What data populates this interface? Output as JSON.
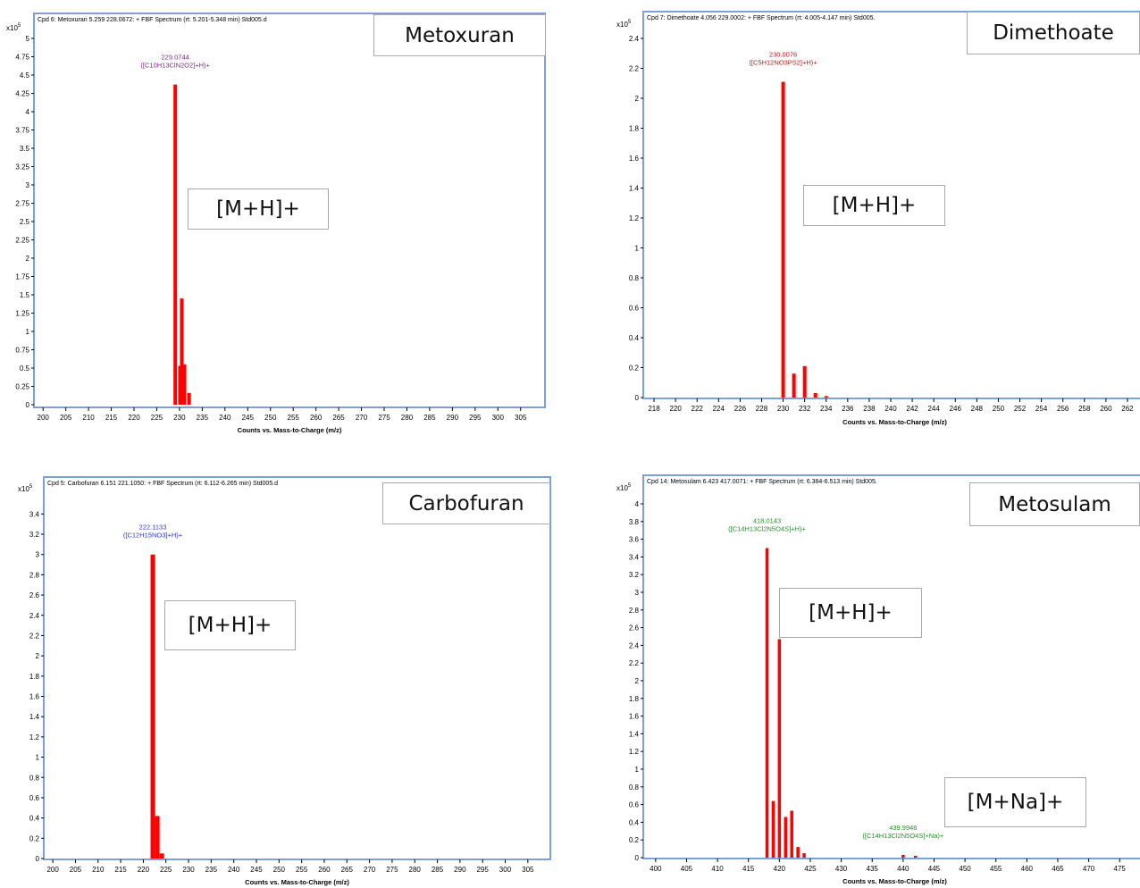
{
  "chart_data": [
    {
      "type": "bar",
      "compound_label": "Metoxuran",
      "header": "Cpd 6: Metoxuran 5.259 228.0672: + FBF Spectrum (rt: 5.201-5.348 min) Std005.d",
      "multiplier": "x10",
      "multiplier_exp": "5",
      "xlabel": "Counts vs. Mass-to-Charge (m/z)",
      "xlim": [
        198,
        308
      ],
      "ylim": [
        0,
        5
      ],
      "x_ticks": [
        200,
        205,
        210,
        215,
        220,
        225,
        230,
        235,
        240,
        245,
        250,
        255,
        260,
        265,
        270,
        275,
        280,
        285,
        290,
        295,
        300,
        305
      ],
      "y_ticks": [
        "0",
        "0.25",
        "0.5",
        "0.75",
        "1",
        "1.25",
        "1.5",
        "1.75",
        "2",
        "2.25",
        "2.5",
        "2.75",
        "3",
        "3.25",
        "3.5",
        "3.75",
        "4",
        "4.25",
        "4.5",
        "4.75",
        "5"
      ],
      "y_tick_values": [
        0,
        0.25,
        0.5,
        0.75,
        1,
        1.25,
        1.5,
        1.75,
        2,
        2.25,
        2.5,
        2.75,
        3,
        3.25,
        3.5,
        3.75,
        4,
        4.25,
        4.5,
        4.75,
        5
      ],
      "peaks": [
        {
          "x": 229.07,
          "y": 4.37
        },
        {
          "x": 230.1,
          "y": 0.53
        },
        {
          "x": 230.5,
          "y": 1.45
        },
        {
          "x": 231.1,
          "y": 0.55
        },
        {
          "x": 232.1,
          "y": 0.16
        }
      ],
      "peak_labels": [
        {
          "x": 229.07,
          "y": 4.37,
          "lines": [
            "229.0744",
            "([C10H13ClN2O2]+H)+"
          ],
          "color": "#7a2a8a"
        }
      ],
      "ion_boxes": [
        {
          "label": "[M+H]+"
        }
      ],
      "bar_color": "#ff0000",
      "frame_color": "#7f9fd8"
    },
    {
      "type": "bar",
      "compound_label": "Dimethoate",
      "header": "Cpd 7: Dimethoate 4.056 229.0002: + FBF Spectrum (rt: 4.005-4.147 min) Std005.",
      "multiplier": "x10",
      "multiplier_exp": "5",
      "xlabel": "Counts vs. Mass-to-Charge (m/z)",
      "xlim": [
        217,
        263
      ],
      "ylim": [
        0,
        2.4
      ],
      "x_ticks": [
        218,
        220,
        222,
        224,
        226,
        228,
        230,
        232,
        234,
        236,
        238,
        240,
        242,
        244,
        246,
        248,
        250,
        252,
        254,
        256,
        258,
        260,
        262
      ],
      "y_ticks": [
        "0",
        "0.2",
        "0.4",
        "0.6",
        "0.8",
        "1",
        "1.2",
        "1.4",
        "1.6",
        "1.8",
        "2",
        "2.2",
        "2.4"
      ],
      "y_tick_values": [
        0,
        0.2,
        0.4,
        0.6,
        0.8,
        1,
        1.2,
        1.4,
        1.6,
        1.8,
        2,
        2.2,
        2.4
      ],
      "peaks": [
        {
          "x": 230.0,
          "y": 2.11
        },
        {
          "x": 231.0,
          "y": 0.16
        },
        {
          "x": 232.0,
          "y": 0.21
        },
        {
          "x": 233.0,
          "y": 0.03
        },
        {
          "x": 234.0,
          "y": 0.01
        }
      ],
      "peak_labels": [
        {
          "x": 230.0,
          "y": 2.11,
          "lines": [
            "230.0076",
            "([C5H12NO3PS2]+H)+"
          ],
          "color": "#b81e1e"
        }
      ],
      "ion_boxes": [
        {
          "label": "[M+H]+"
        }
      ],
      "bar_color": "#ff0000",
      "frame_color": "#7f9fd8"
    },
    {
      "type": "bar",
      "compound_label": "Carbofuran",
      "header": "Cpd 5: Carbofuran 6.151 221.1050: + FBF Spectrum (rt: 6.112-6.265 min) Std005.d",
      "multiplier": "x10",
      "multiplier_exp": "5",
      "xlabel": "Counts vs. Mass-to-Charge (m/z)",
      "xlim": [
        198,
        308
      ],
      "ylim": [
        0,
        3.5
      ],
      "x_ticks": [
        200,
        205,
        210,
        215,
        220,
        225,
        230,
        235,
        240,
        245,
        250,
        255,
        260,
        265,
        270,
        275,
        280,
        285,
        290,
        295,
        300,
        305
      ],
      "y_ticks": [
        "0",
        "0.2",
        "0.4",
        "0.6",
        "0.8",
        "1",
        "1.2",
        "1.4",
        "1.6",
        "1.8",
        "2",
        "2.2",
        "2.4",
        "2.6",
        "2.8",
        "3",
        "3.2",
        "3.4"
      ],
      "y_tick_values": [
        0,
        0.2,
        0.4,
        0.6,
        0.8,
        1,
        1.2,
        1.4,
        1.6,
        1.8,
        2,
        2.2,
        2.4,
        2.6,
        2.8,
        3,
        3.2,
        3.4
      ],
      "peaks": [
        {
          "x": 222.1,
          "y": 3.0
        },
        {
          "x": 223.1,
          "y": 0.42
        },
        {
          "x": 224.1,
          "y": 0.05
        }
      ],
      "peak_labels": [
        {
          "x": 222.1,
          "y": 3.0,
          "lines": [
            "222.1133",
            "([C12H15NO3]+H)+"
          ],
          "color": "#2a3ad0"
        }
      ],
      "ion_boxes": [
        {
          "label": "[M+H]+"
        }
      ],
      "bar_color": "#ff0000",
      "frame_color": "#7f9fd8"
    },
    {
      "type": "bar",
      "compound_label": "Metosulam",
      "header": "Cpd 14: Metosulam 6.423 417.0071: + FBF Spectrum (rt: 6.384-6.513 min) Std005.",
      "multiplier": "x10",
      "multiplier_exp": "5",
      "xlabel": "Counts vs. Mass-to-Charge (m/z)",
      "xlim": [
        398,
        478
      ],
      "ylim": [
        0,
        4
      ],
      "x_ticks": [
        400,
        405,
        410,
        415,
        420,
        425,
        430,
        435,
        440,
        445,
        450,
        455,
        460,
        465,
        470,
        475
      ],
      "y_ticks": [
        "0",
        "0.2",
        "0.4",
        "0.6",
        "0.8",
        "1",
        "1.2",
        "1.4",
        "1.6",
        "1.8",
        "2",
        "2.2",
        "2.4",
        "2.6",
        "2.8",
        "3",
        "3.2",
        "3.4",
        "3.6",
        "3.8",
        "4"
      ],
      "y_tick_values": [
        0,
        0.2,
        0.4,
        0.6,
        0.8,
        1,
        1.2,
        1.4,
        1.6,
        1.8,
        2,
        2.2,
        2.4,
        2.6,
        2.8,
        3,
        3.2,
        3.4,
        3.6,
        3.8,
        4
      ],
      "peaks": [
        {
          "x": 418.0,
          "y": 3.5
        },
        {
          "x": 419.0,
          "y": 0.64
        },
        {
          "x": 420.0,
          "y": 2.47
        },
        {
          "x": 421.0,
          "y": 0.46
        },
        {
          "x": 422.0,
          "y": 0.53
        },
        {
          "x": 423.0,
          "y": 0.12
        },
        {
          "x": 424.0,
          "y": 0.05
        },
        {
          "x": 440.0,
          "y": 0.03
        },
        {
          "x": 442.0,
          "y": 0.02
        }
      ],
      "peak_labels": [
        {
          "x": 418.0,
          "y": 3.5,
          "lines": [
            "418.0143",
            "([C14H13Cl2N5O4S]+H)+"
          ],
          "color": "#2e8b2e"
        },
        {
          "x": 440.0,
          "y": 0.03,
          "lines": [
            "439.9946",
            "([C14H13Cl2N5O4S]+Na)+"
          ],
          "color": "#2e8b2e"
        }
      ],
      "ion_boxes": [
        {
          "label": "[M+H]+"
        },
        {
          "label": "[M+Na]+"
        }
      ],
      "bar_color": "#ff0000",
      "frame_color": "#7f9fd8"
    }
  ]
}
